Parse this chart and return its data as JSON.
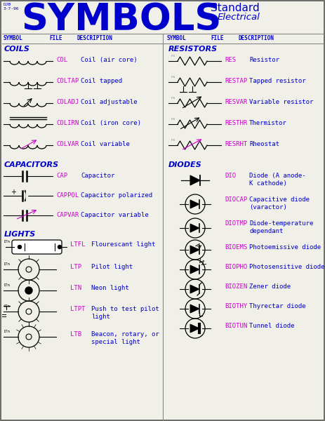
{
  "title": "SYMBOLS",
  "subtitle_line1": "Standard",
  "subtitle_line2": "Electrical",
  "title_ref": "DJB\n3-7-96",
  "bg_color": "#f0f0e8",
  "title_color": "#0000cc",
  "header_color": "#0000cc",
  "category_color": "#0000cc",
  "file_color": "#cc00cc",
  "desc_color": "#0000cc",
  "symbol_color": "#000000",
  "border_color": "#888888",
  "left_category": "COILS",
  "left_rows": [
    {
      "file": "COL",
      "desc": "Coil (air core)"
    },
    {
      "file": "COLTAP",
      "desc": "Coil tapped"
    },
    {
      "file": "COLADJ",
      "desc": "Coil adjustable"
    },
    {
      "file": "COLIRN",
      "desc": "Coil (iron core)"
    },
    {
      "file": "COLVAR",
      "desc": "Coil variable"
    }
  ],
  "left_category2": "CAPACITORS",
  "left_rows2": [
    {
      "file": "CAP",
      "desc": "Capacitor"
    },
    {
      "file": "CAPPOL",
      "desc": "Capacitor polarized"
    },
    {
      "file": "CAPVAR",
      "desc": "Capacitor variable"
    }
  ],
  "left_category3": "LIGHTS",
  "left_rows3": [
    {
      "file": "LTFL",
      "desc": "Flourescant light"
    },
    {
      "file": "LTP",
      "desc": "Pilot light"
    },
    {
      "file": "LTN",
      "desc": "Neon light"
    },
    {
      "file": "LTPT",
      "desc": "Push to test pilot\nlight"
    },
    {
      "file": "LTB",
      "desc": "Beacon, rotary, or\nspecial light"
    }
  ],
  "right_category": "RESISTORS",
  "right_rows": [
    {
      "file": "RES",
      "desc": "Resistor"
    },
    {
      "file": "RESTAP",
      "desc": "Tapped resistor"
    },
    {
      "file": "RESVAR",
      "desc": "Variable resistor"
    },
    {
      "file": "RESTHR",
      "desc": "Thermistor"
    },
    {
      "file": "RESRHT",
      "desc": "Rheostat"
    }
  ],
  "right_category2": "DIODES",
  "right_rows2": [
    {
      "file": "DIO",
      "desc": "Diode (A anode-\nK cathode)"
    },
    {
      "file": "DIOCAP",
      "desc": "Capacitive diode\n(varactor)"
    },
    {
      "file": "DIOTMP",
      "desc": "Diode-temperature\ndependant"
    },
    {
      "file": "BIOEMS",
      "desc": "Photoemissive diode"
    },
    {
      "file": "BIOPHO",
      "desc": "Photosensitive diode"
    },
    {
      "file": "BIOZEN",
      "desc": "Zener diode"
    },
    {
      "file": "BIOTHY",
      "desc": "Thyrectar diode"
    },
    {
      "file": "BIOTUN",
      "desc": "Tunnel diode"
    }
  ]
}
